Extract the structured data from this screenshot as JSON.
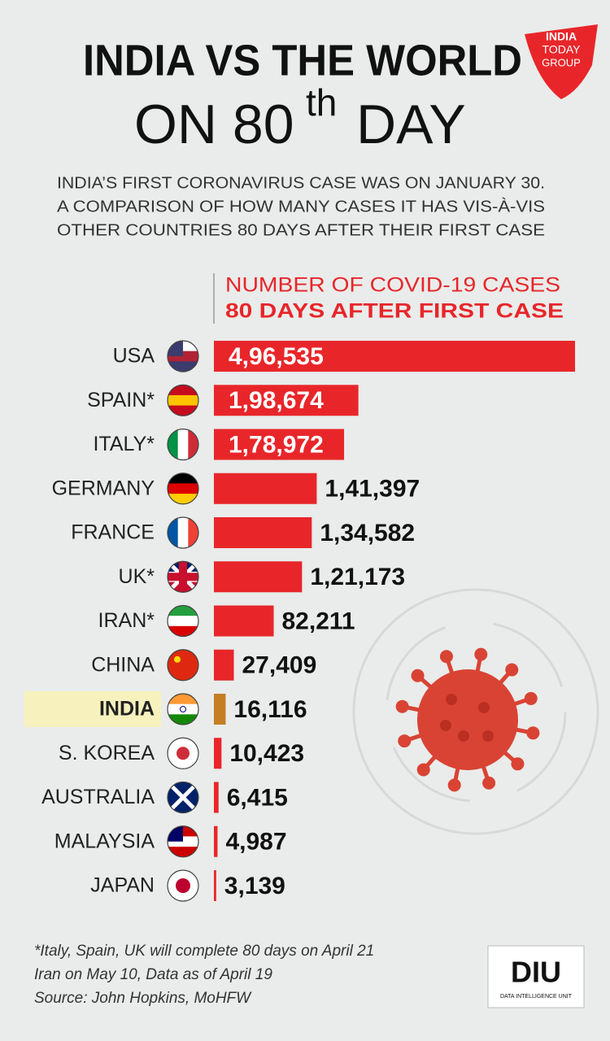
{
  "chart_data": {
    "type": "bar",
    "orientation": "horizontal",
    "title": "INDIA VS THE WORLD",
    "title_line2": {
      "main": "ON 80",
      "sup": "th",
      "end": "DAY"
    },
    "subtitle": [
      "INDIA’S FIRST CORONAVIRUS CASE WAS ON JANUARY 30.",
      "A COMPARISON OF HOW MANY CASES IT HAS VIS-À-VIS",
      "OTHER COUNTRIES 80 DAYS AFTER THEIR FIRST CASE"
    ],
    "value_heading": [
      "NUMBER OF COVID-19 CASES",
      "80 DAYS AFTER FIRST CASE"
    ],
    "categories": [
      "USA",
      "SPAIN*",
      "ITALY*",
      "GERMANY",
      "FRANCE",
      "UK*",
      "IRAN*",
      "CHINA",
      "INDIA",
      "S. KOREA",
      "AUSTRALIA",
      "MALAYSIA",
      "JAPAN"
    ],
    "values": [
      496535,
      198674,
      178972,
      141397,
      134582,
      121173,
      82211,
      27409,
      16116,
      10423,
      6415,
      4987,
      3139
    ],
    "value_labels": [
      "4,96,535",
      "1,98,674",
      "1,78,972",
      "1,41,397",
      "1,34,582",
      "1,21,173",
      "82,211",
      "27,409",
      "16,116",
      "10,423",
      "6,415",
      "4,987",
      "3,139"
    ],
    "color": "#e8262a",
    "colors": [
      "#e8262a",
      "#e8262a",
      "#e8262a",
      "#e8262a",
      "#e8262a",
      "#e8262a",
      "#e8262a",
      "#e8262a",
      "#c67e22",
      "#e8262a",
      "#e8262a",
      "#e8262a",
      "#e8262a"
    ],
    "highlight_color": "#f7f1bd",
    "footnote": [
      "*Italy, Spain, UK will complete 80 days on April 21",
      "Iran on May 10, Data as of April 19",
      "Source: John Hopkins, MoHFW"
    ]
  },
  "logos": {
    "publisher": [
      "INDIA",
      "TODAY",
      "GROUP"
    ],
    "unit": "DIU",
    "unit_caption": "DATA INTELLIGENCE UNIT"
  }
}
